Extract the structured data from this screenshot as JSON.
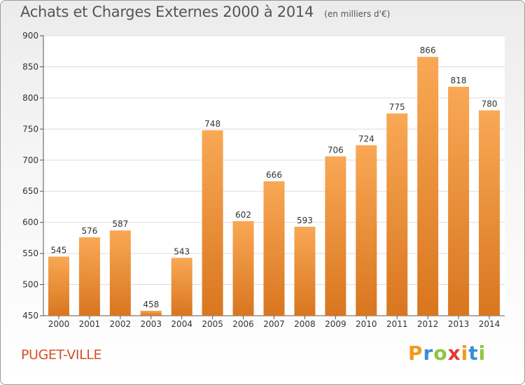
{
  "header": {
    "title": "Achats et Charges Externes 2000 à 2014",
    "subtitle": "(en milliers d'€)"
  },
  "footer": {
    "commune": "PUGET-VILLE",
    "logo_text": "Proxiti",
    "logo_colors": [
      "#f39a1f",
      "#3b8fd6",
      "#8cc63f",
      "#e23b2e",
      "#f39a1f",
      "#3b8fd6",
      "#8cc63f"
    ]
  },
  "colors": {
    "bar_top": "#f9a855",
    "bar_bottom": "#d9761f",
    "axis_text": "#333333",
    "grid": "#dddddd"
  },
  "chart_data": {
    "type": "bar",
    "title": "Achats et Charges Externes 2000 à 2014",
    "subtitle": "(en milliers d'€)",
    "categories": [
      "2000",
      "2001",
      "2002",
      "2003",
      "2004",
      "2005",
      "2006",
      "2007",
      "2008",
      "2009",
      "2010",
      "2011",
      "2012",
      "2013",
      "2014"
    ],
    "values": [
      545,
      576,
      587,
      458,
      543,
      748,
      602,
      666,
      593,
      706,
      724,
      775,
      866,
      818,
      780
    ],
    "ylim": [
      450,
      900
    ],
    "yticks": [
      450,
      500,
      550,
      600,
      650,
      700,
      750,
      800,
      850,
      900
    ],
    "grid": true,
    "data_labels": true
  }
}
